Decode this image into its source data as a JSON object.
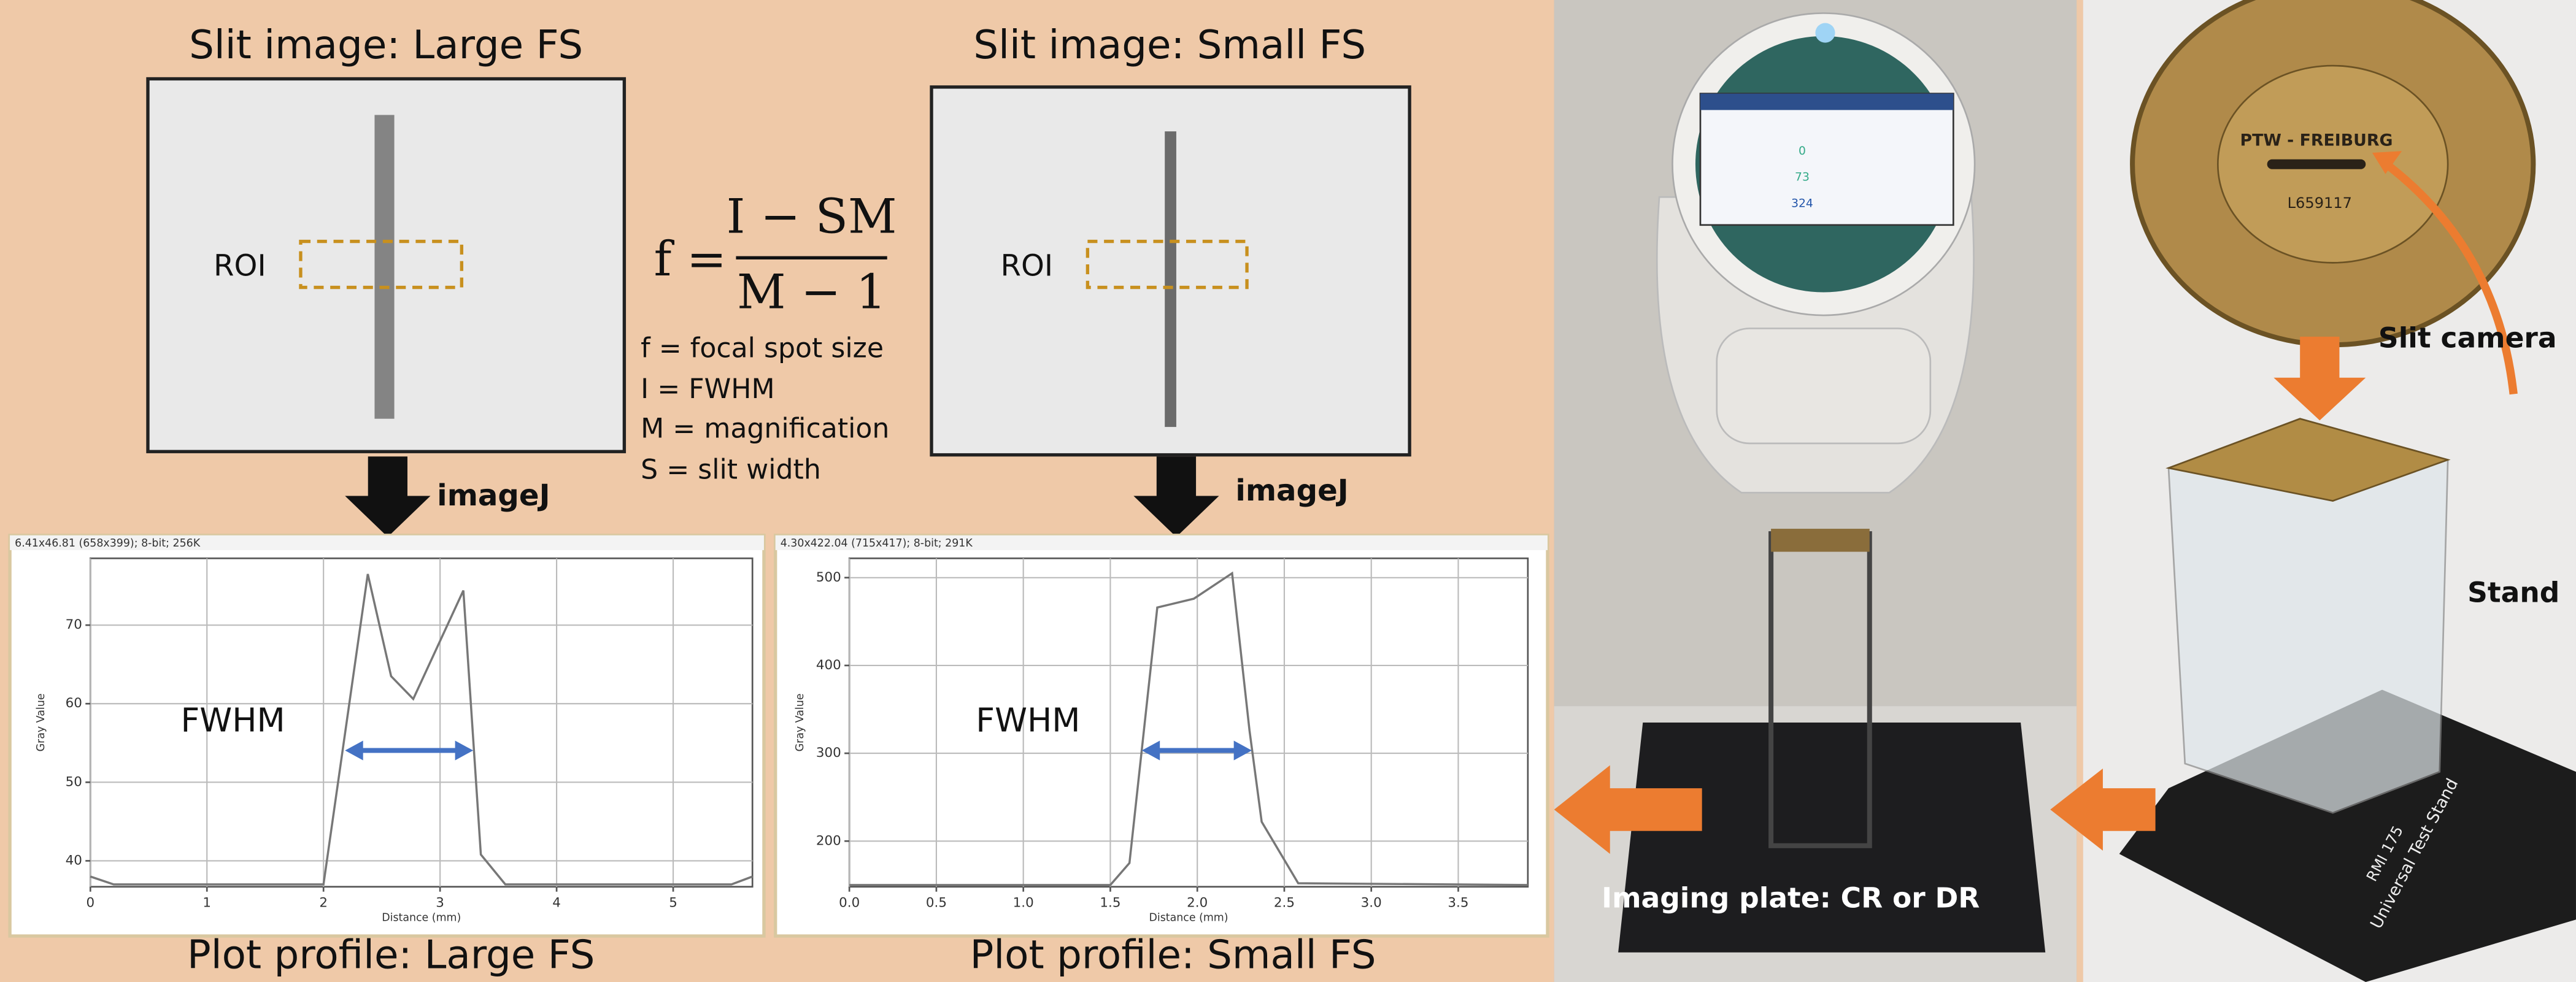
{
  "slit_images": [
    {
      "title": "Slit image: Large FS",
      "roi": "ROI"
    },
    {
      "title": "Slit image: Small FS",
      "roi": "ROI"
    }
  ],
  "formula": {
    "lhs": "f =",
    "numerator": "I − SM",
    "denominator": "M − 1",
    "definitions": [
      "f = focal spot size",
      "I = FWHM",
      "M = magnification",
      "S = slit width"
    ]
  },
  "tool_labels": [
    "imageJ",
    "imageJ"
  ],
  "plots": [
    {
      "header": "6.41x46.81  (658x399); 8-bit; 256K",
      "y_label": "Gray Value",
      "x_label": "Distance (mm)",
      "fwhm_label": "FWHM",
      "caption": "Plot profile: Large FS",
      "x": [
        0,
        0.2,
        2.0,
        2.38,
        2.58,
        2.77,
        3.2,
        3.35,
        3.56,
        5.5,
        5.68
      ],
      "values": [
        38,
        37,
        37,
        76.5,
        63.5,
        60.6,
        74.4,
        40.8,
        37,
        37,
        38
      ],
      "xlim": [
        0,
        5.68
      ],
      "ylim": [
        36.7,
        78.5
      ],
      "xticks": [
        0,
        1,
        2,
        3,
        4,
        5
      ],
      "yticks": [
        40,
        50,
        60,
        70
      ]
    },
    {
      "header": "4.30x422.04  (715x417); 8-bit; 291K",
      "y_label": "Gray Value",
      "x_label": "Distance (mm)",
      "fwhm_label": "FWHM",
      "caption": "Plot profile: Small FS",
      "x": [
        0,
        1.5,
        1.61,
        1.77,
        1.98,
        2.2,
        2.3,
        2.37,
        2.58,
        3.9
      ],
      "values": [
        150,
        150,
        175,
        466,
        476,
        505,
        326,
        222,
        152,
        150
      ],
      "xlim": [
        0,
        3.9
      ],
      "ylim": [
        148,
        522
      ],
      "xticks": [
        {
          "value": 0,
          "label": "0.0"
        },
        0.5,
        {
          "value": 1,
          "label": "1.0"
        },
        1.5,
        {
          "value": 2,
          "label": "2.0"
        },
        2.5,
        {
          "value": 3,
          "label": "3.0"
        },
        3.5
      ],
      "yticks": [
        200,
        300,
        400,
        500
      ]
    }
  ],
  "photos": {
    "screen_values": [
      "0",
      "73",
      "324"
    ],
    "slit_camera_text": [
      "PTW - FREIBURG",
      "L659117"
    ],
    "stand_text": [
      "Universal Test Stand",
      "RMI 175"
    ],
    "labels": {
      "slit_camera": "Slit camera",
      "stand": "Stand",
      "imaging_plate": "Imaging plate: CR or DR"
    }
  }
}
